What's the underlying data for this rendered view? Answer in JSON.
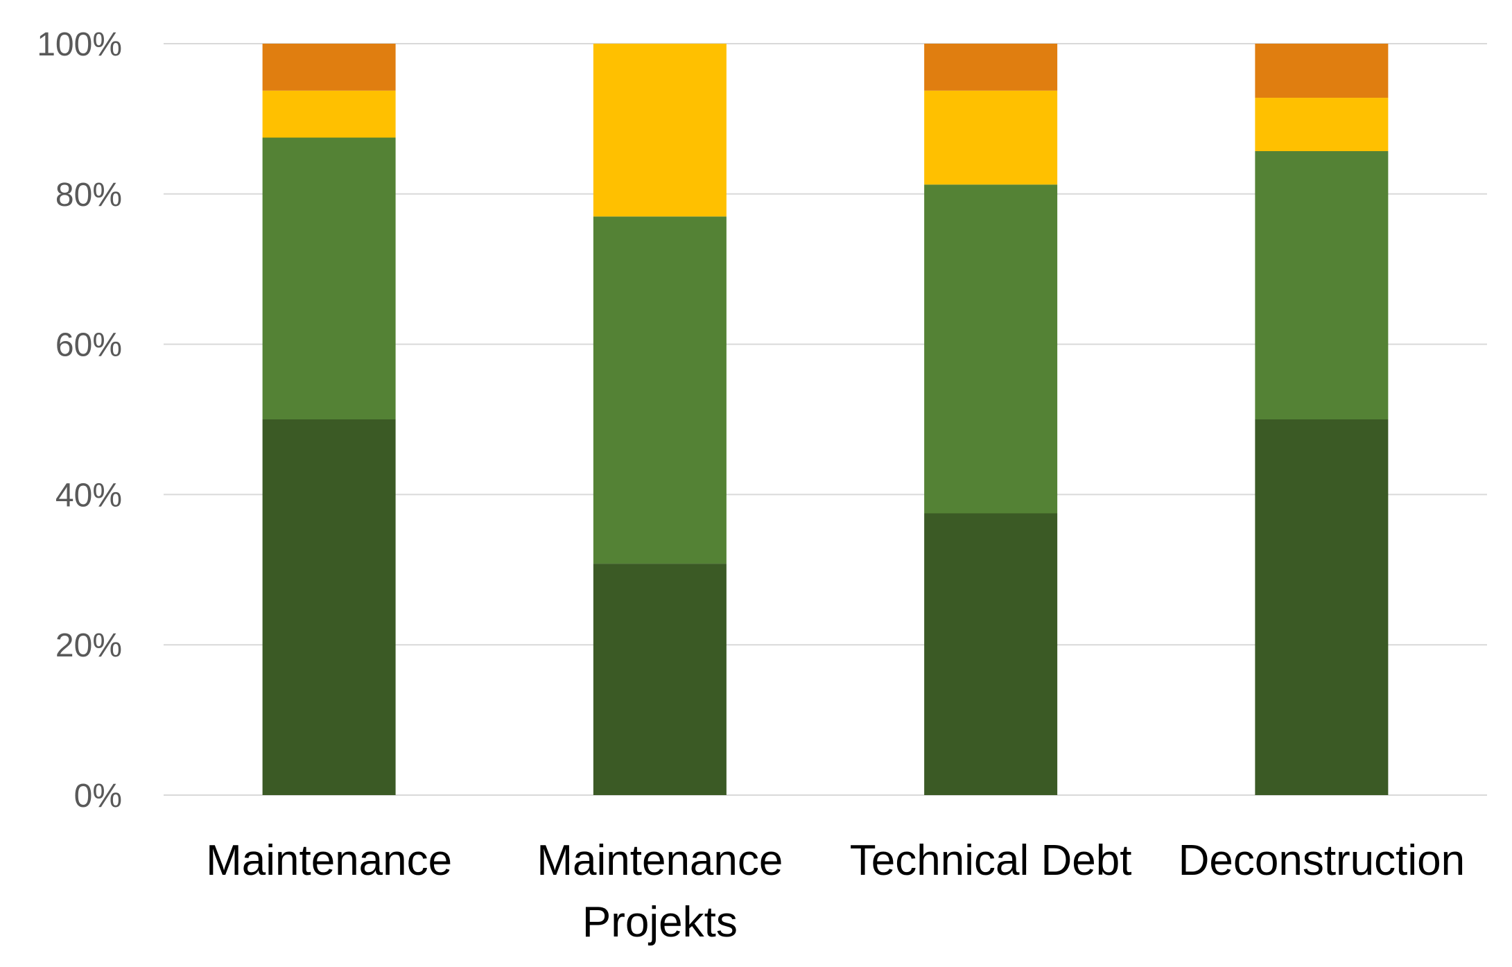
{
  "chart_data": {
    "type": "bar",
    "stacked": true,
    "percent_stacked": true,
    "title": "",
    "xlabel": "",
    "ylabel": "",
    "ylim": [
      0,
      100
    ],
    "y_ticks": [
      "0%",
      "20%",
      "40%",
      "60%",
      "80%",
      "100%"
    ],
    "grid": true,
    "legend": "none",
    "categories": [
      [
        "Maintenance"
      ],
      [
        "Maintenance",
        "Projekts"
      ],
      [
        "Technical Debt"
      ],
      [
        "Deconstruction"
      ]
    ],
    "series": [
      {
        "color": "#3b5a25",
        "values": [
          50,
          30.8,
          37.5,
          50
        ]
      },
      {
        "color": "#548235",
        "values": [
          37.5,
          46.2,
          43.75,
          35.7
        ]
      },
      {
        "color": "#ffc000",
        "values": [
          6.25,
          23.0,
          12.5,
          7.1
        ]
      },
      {
        "color": "#e07e10",
        "values": [
          6.25,
          0,
          6.25,
          7.2
        ]
      }
    ]
  }
}
